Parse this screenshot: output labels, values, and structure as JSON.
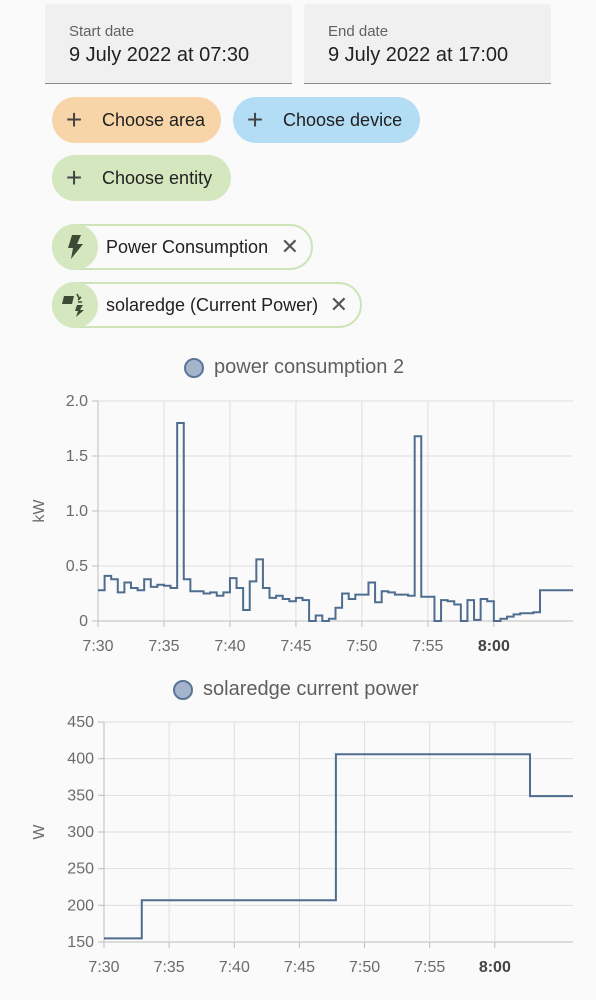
{
  "dates": {
    "start": {
      "label": "Start date",
      "value": "9 July 2022 at 07:30"
    },
    "end": {
      "label": "End date",
      "value": "9 July 2022 at 17:00"
    }
  },
  "pickers": [
    {
      "label": "Choose area",
      "color": "#f7d5a8"
    },
    {
      "label": "Choose device",
      "color": "#b3dcf5"
    },
    {
      "label": "Choose entity",
      "color": "#d4e7bf"
    }
  ],
  "selected": [
    {
      "label": "Power Consumption",
      "icon": "flash-icon"
    },
    {
      "label": "solaredge (Current Power)",
      "icon": "solar-power-icon"
    }
  ],
  "colors": {
    "line": "#4e6d8f",
    "grid": "#dedede",
    "axis": "#bdbdbd"
  },
  "chart_data": [
    {
      "type": "line",
      "legend": "power consumption 2",
      "ylabel": "kW",
      "ylim": [
        0,
        2.0
      ],
      "yticks": [
        "0",
        "0.5",
        "1.0",
        "1.5",
        "2.0"
      ],
      "ytick_values": [
        0,
        0.5,
        1.0,
        1.5,
        2.0
      ],
      "xticks": [
        "7:30",
        "7:35",
        "7:40",
        "7:45",
        "7:50",
        "7:55",
        "8:00"
      ],
      "xtick_minutes": [
        0,
        5,
        10,
        15,
        20,
        25,
        30
      ],
      "xlim_minutes": [
        0,
        36
      ],
      "bold_tick": "8:00",
      "step": true,
      "x_minutes": [
        0,
        0.5,
        1,
        1.5,
        2,
        2.5,
        3,
        3.5,
        4,
        4.5,
        5,
        5.5,
        6,
        6.5,
        7,
        7.5,
        8,
        8.5,
        9,
        9.5,
        10,
        10.5,
        11,
        11.5,
        12,
        12.5,
        13,
        13.5,
        14,
        14.5,
        15,
        15.5,
        16,
        16.5,
        17,
        17.5,
        18,
        18.5,
        19,
        19.5,
        20,
        20.5,
        21,
        21.5,
        22,
        22.5,
        23,
        23.5,
        24,
        24.5,
        25,
        25.5,
        26,
        26.5,
        27,
        27.5,
        28,
        28.5,
        29,
        29.5,
        30,
        30.5,
        31,
        31.5,
        32,
        32.5,
        33,
        33.5,
        34,
        34.5,
        35,
        35.5,
        36
      ],
      "values": [
        0.28,
        0.41,
        0.38,
        0.26,
        0.35,
        0.3,
        0.28,
        0.38,
        0.31,
        0.33,
        0.32,
        0.3,
        1.8,
        0.38,
        0.27,
        0.27,
        0.25,
        0.26,
        0.23,
        0.26,
        0.39,
        0.3,
        0.1,
        0.36,
        0.56,
        0.3,
        0.21,
        0.23,
        0.2,
        0.18,
        0.21,
        0.19,
        0.0,
        0.05,
        0.0,
        0.02,
        0.12,
        0.25,
        0.2,
        0.24,
        0.24,
        0.35,
        0.17,
        0.27,
        0.26,
        0.24,
        0.24,
        0.23,
        1.68,
        0.22,
        0.22,
        0.0,
        0.19,
        0.18,
        0.15,
        0.0,
        0.19,
        0.01,
        0.2,
        0.18,
        0.0,
        0.02,
        0.04,
        0.06,
        0.07,
        0.07,
        0.08,
        0.28,
        0.28,
        0.28,
        0.28,
        0.28,
        0.28
      ]
    },
    {
      "type": "line",
      "legend": "solaredge current power",
      "ylabel": "W",
      "ylim": [
        150,
        450
      ],
      "yticks": [
        "150",
        "200",
        "250",
        "300",
        "350",
        "400",
        "450"
      ],
      "ytick_values": [
        150,
        200,
        250,
        300,
        350,
        400,
        450
      ],
      "xticks": [
        "7:30",
        "7:35",
        "7:40",
        "7:45",
        "7:50",
        "7:55",
        "8:00"
      ],
      "xtick_minutes": [
        0,
        5,
        10,
        15,
        20,
        25,
        30
      ],
      "xlim_minutes": [
        0,
        36
      ],
      "bold_tick": "8:00",
      "step": true,
      "x_minutes": [
        0,
        2.9,
        17.8,
        32.7,
        36
      ],
      "values": [
        155,
        207,
        406,
        349,
        349
      ]
    }
  ]
}
